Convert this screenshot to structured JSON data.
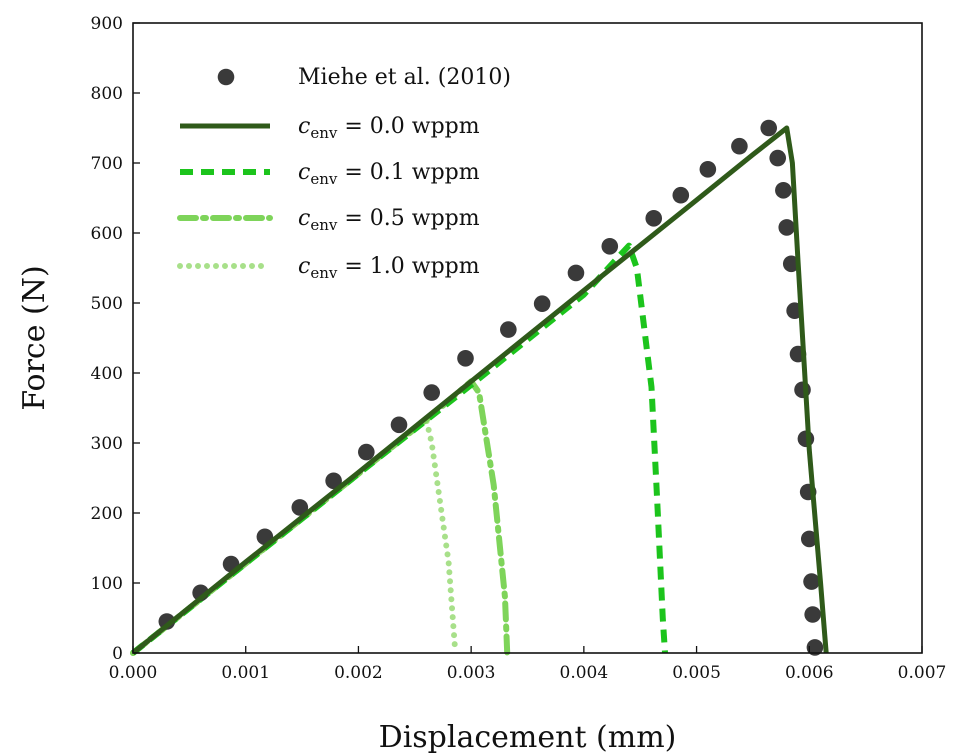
{
  "chart_data": {
    "type": "line",
    "title": "",
    "xlabel": "Displacement (mm)",
    "ylabel": "Force (N)",
    "xlim": [
      0,
      0.007
    ],
    "ylim": [
      0,
      900
    ],
    "grid": false,
    "legend_position": "top-left",
    "x_ticks": [
      "0.000",
      "0.001",
      "0.002",
      "0.003",
      "0.004",
      "0.005",
      "0.006",
      "0.007"
    ],
    "y_ticks": [
      "0",
      "100",
      "200",
      "300",
      "400",
      "500",
      "600",
      "700",
      "800",
      "900"
    ],
    "series": [
      {
        "name": "Miehe et al. (2010)",
        "style": "markers",
        "color": "#3a3a3a",
        "points": [
          [
            0.0003,
            45
          ],
          [
            0.0006,
            86
          ],
          [
            0.00087,
            127
          ],
          [
            0.00117,
            166
          ],
          [
            0.00148,
            208
          ],
          [
            0.00178,
            246
          ],
          [
            0.00207,
            287
          ],
          [
            0.00236,
            326
          ],
          [
            0.00265,
            372
          ],
          [
            0.00295,
            421
          ],
          [
            0.00333,
            462
          ],
          [
            0.00363,
            499
          ],
          [
            0.00393,
            543
          ],
          [
            0.00423,
            581
          ],
          [
            0.00462,
            621
          ],
          [
            0.00486,
            654
          ],
          [
            0.0051,
            691
          ],
          [
            0.00538,
            724
          ],
          [
            0.00564,
            750
          ],
          [
            0.00572,
            707
          ],
          [
            0.00577,
            661
          ],
          [
            0.0058,
            608
          ],
          [
            0.00584,
            556
          ],
          [
            0.00587,
            489
          ],
          [
            0.0059,
            427
          ],
          [
            0.00594,
            376
          ],
          [
            0.00597,
            306
          ],
          [
            0.00599,
            230
          ],
          [
            0.006,
            163
          ],
          [
            0.00602,
            102
          ],
          [
            0.00603,
            55
          ],
          [
            0.00605,
            8
          ]
        ]
      },
      {
        "name": "c_env = 0.0 wppm",
        "legend_label": {
          "sym": "c",
          "sub": "env",
          "rest": " = 0.0 wppm"
        },
        "style": "solid",
        "color": "#2f5a1a",
        "points": [
          [
            0,
            0
          ],
          [
            0.001,
            130
          ],
          [
            0.002,
            258
          ],
          [
            0.003,
            388
          ],
          [
            0.004,
            518
          ],
          [
            0.005,
            647
          ],
          [
            0.0055,
            712
          ],
          [
            0.0058,
            750
          ],
          [
            0.00585,
            700
          ],
          [
            0.0059,
            560
          ],
          [
            0.006,
            290
          ],
          [
            0.0061,
            100
          ],
          [
            0.00615,
            0
          ]
        ]
      },
      {
        "name": "c_env = 0.1 wppm",
        "legend_label": {
          "sym": "c",
          "sub": "env",
          "rest": " = 0.1 wppm"
        },
        "style": "dashed",
        "color": "#1cc41c",
        "points": [
          [
            0,
            0
          ],
          [
            0.001,
            128
          ],
          [
            0.002,
            256
          ],
          [
            0.003,
            383
          ],
          [
            0.004,
            512
          ],
          [
            0.0044,
            582
          ],
          [
            0.00447,
            550
          ],
          [
            0.0046,
            380
          ],
          [
            0.00465,
            220
          ],
          [
            0.0047,
            50
          ],
          [
            0.00472,
            0
          ]
        ]
      },
      {
        "name": "c_env = 0.5 wppm",
        "legend_label": {
          "sym": "c",
          "sub": "env",
          "rest": " = 0.5 wppm"
        },
        "style": "dashdot",
        "color": "#7ed45a",
        "points": [
          [
            0,
            0
          ],
          [
            0.001,
            128
          ],
          [
            0.002,
            256
          ],
          [
            0.0026,
            333
          ],
          [
            0.003,
            388
          ],
          [
            0.00307,
            372
          ],
          [
            0.0032,
            240
          ],
          [
            0.0033,
            80
          ],
          [
            0.00332,
            0
          ]
        ]
      },
      {
        "name": "c_env = 1.0 wppm",
        "legend_label": {
          "sym": "c",
          "sub": "env",
          "rest": " = 1.0 wppm"
        },
        "style": "dotted",
        "color": "#a8e08a",
        "points": [
          [
            0,
            0
          ],
          [
            0.001,
            128
          ],
          [
            0.002,
            256
          ],
          [
            0.0026,
            335
          ],
          [
            0.00265,
            300
          ],
          [
            0.0028,
            130
          ],
          [
            0.00286,
            0
          ]
        ]
      }
    ]
  }
}
